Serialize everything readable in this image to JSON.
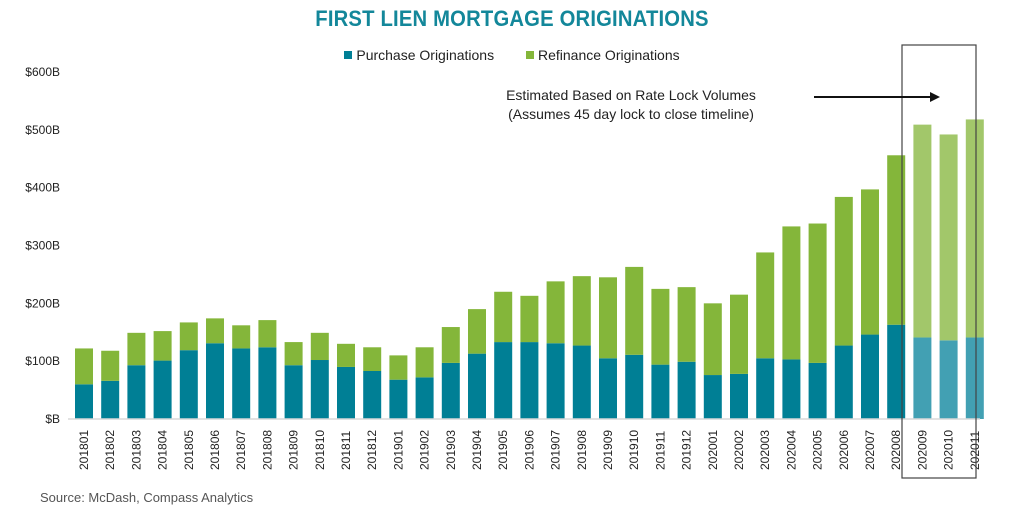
{
  "chart_data": {
    "type": "bar",
    "stacked": true,
    "title": "FIRST LIEN MORTGAGE ORIGINATIONS",
    "xlabel": "",
    "ylabel": "",
    "ylim": [
      0,
      600
    ],
    "yticks": [
      {
        "value": 0,
        "label": "$B"
      },
      {
        "value": 100,
        "label": "$100B"
      },
      {
        "value": 200,
        "label": "$200B"
      },
      {
        "value": 300,
        "label": "$300B"
      },
      {
        "value": 400,
        "label": "$400B"
      },
      {
        "value": 500,
        "label": "$500B"
      },
      {
        "value": 600,
        "label": "$600B"
      }
    ],
    "grid": false,
    "legend_position": "top-center",
    "categories": [
      "201801",
      "201802",
      "201803",
      "201804",
      "201805",
      "201806",
      "201807",
      "201808",
      "201809",
      "201810",
      "201811",
      "201812",
      "201901",
      "201902",
      "201903",
      "201904",
      "201905",
      "201906",
      "201907",
      "201908",
      "201909",
      "201910",
      "201911",
      "201912",
      "202001",
      "202002",
      "202003",
      "202004",
      "202005",
      "202006",
      "202007",
      "202008",
      "202009",
      "202010",
      "202011"
    ],
    "series": [
      {
        "name": "Purchase Originations",
        "color": "#007f95",
        "estimated_color": "#42a0b3",
        "values": [
          60,
          66,
          93,
          101,
          119,
          131,
          122,
          124,
          93,
          102,
          90,
          83,
          68,
          72,
          97,
          113,
          133,
          133,
          131,
          127,
          105,
          111,
          94,
          99,
          76,
          78,
          105,
          103,
          97,
          127,
          146,
          163,
          141,
          136,
          141
        ]
      },
      {
        "name": "Refinance Originations",
        "color": "#84b63a",
        "estimated_color": "#a2c76a",
        "values": [
          62,
          52,
          56,
          51,
          48,
          43,
          40,
          47,
          40,
          47,
          40,
          41,
          42,
          52,
          62,
          77,
          87,
          80,
          107,
          120,
          140,
          152,
          131,
          129,
          124,
          137,
          183,
          230,
          241,
          257,
          251,
          293,
          368,
          356,
          377
        ]
      }
    ],
    "estimated_categories": [
      "202009",
      "202010",
      "202011"
    ],
    "annotation": {
      "line1": "Estimated Based on Rate Lock Volumes",
      "line2": "(Assumes 45 day lock to close timeline)"
    },
    "units": "USD billions"
  },
  "source": "Source: McDash, Compass Analytics"
}
